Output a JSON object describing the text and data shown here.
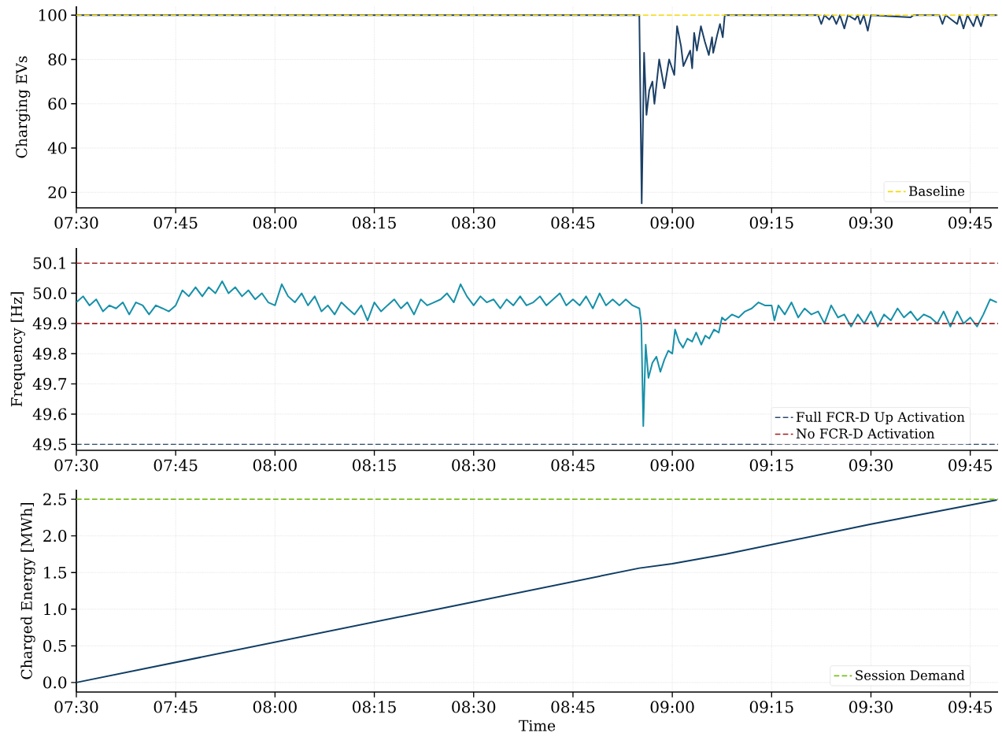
{
  "chart_data": [
    {
      "type": "line",
      "ylabel": "Charging EVs",
      "xlim": [
        7.5,
        9.82
      ],
      "ylim": [
        13,
        104
      ],
      "grid": true,
      "legend": "bottom right",
      "xticks": [
        {
          "value": 7.5,
          "label": "07:30"
        },
        {
          "value": 7.75,
          "label": "07:45"
        },
        {
          "value": 8.0,
          "label": "08:00"
        },
        {
          "value": 8.25,
          "label": "08:15"
        },
        {
          "value": 8.5,
          "label": "08:30"
        },
        {
          "value": 8.75,
          "label": "08:45"
        },
        {
          "value": 9.0,
          "label": "09:00"
        },
        {
          "value": 9.25,
          "label": "09:15"
        },
        {
          "value": 9.5,
          "label": "09:30"
        },
        {
          "value": 9.75,
          "label": "09:45"
        }
      ],
      "yticks": [
        20,
        40,
        60,
        80,
        100
      ],
      "series": [
        {
          "color": "#1b3f66",
          "x": [
            7.5,
            8.917,
            8.923,
            8.929,
            8.935,
            8.942,
            8.95,
            8.955,
            8.967,
            8.98,
            8.992,
            9.005,
            9.012,
            9.022,
            9.028,
            9.045,
            9.05,
            9.055,
            9.062,
            9.072,
            9.082,
            9.092,
            9.1,
            9.103,
            9.113,
            9.12,
            9.127,
            9.132,
            9.367,
            9.375,
            9.383,
            9.395,
            9.403,
            9.413,
            9.422,
            9.433,
            9.442,
            9.46,
            9.467,
            9.473,
            9.482,
            9.492,
            9.5,
            9.6,
            9.607,
            9.672,
            9.68,
            9.688,
            9.717,
            9.723,
            9.733,
            9.743,
            9.758,
            9.767,
            9.777,
            9.785,
            9.817
          ],
          "values": [
            100,
            100,
            15,
            83,
            55,
            66,
            70,
            60,
            80,
            67,
            80,
            73,
            95,
            86,
            77,
            84,
            76,
            92,
            84,
            95,
            88,
            82,
            90,
            83,
            91,
            96,
            90,
            100,
            100,
            96,
            100,
            98,
            100,
            96,
            100,
            94,
            100,
            98,
            100,
            96,
            100,
            93,
            100,
            99,
            100,
            100,
            96,
            100,
            96,
            100,
            94,
            100,
            95,
            100,
            95,
            100,
            100
          ]
        }
      ],
      "ref_lines": [
        {
          "axis": "y",
          "value": 100,
          "label": "Baseline",
          "color": "#f5d90a",
          "line_style": "dashed"
        }
      ]
    },
    {
      "type": "line",
      "ylabel": "Frequency [Hz]",
      "xlim": [
        7.5,
        9.82
      ],
      "ylim": [
        49.48,
        50.15
      ],
      "grid": true,
      "legend": "bottom right",
      "xticks": [
        {
          "value": 7.5,
          "label": "07:30"
        },
        {
          "value": 7.75,
          "label": "07:45"
        },
        {
          "value": 8.0,
          "label": "08:00"
        },
        {
          "value": 8.25,
          "label": "08:15"
        },
        {
          "value": 8.5,
          "label": "08:30"
        },
        {
          "value": 8.75,
          "label": "08:45"
        },
        {
          "value": 9.0,
          "label": "09:00"
        },
        {
          "value": 9.25,
          "label": "09:15"
        },
        {
          "value": 9.5,
          "label": "09:30"
        },
        {
          "value": 9.75,
          "label": "09:45"
        }
      ],
      "yticks": [
        49.5,
        49.6,
        49.7,
        49.8,
        49.9,
        {
          "value": 50.0,
          "label": "50.0"
        },
        50.1
      ],
      "series": [
        {
          "color": "#1690a8",
          "x": [
            7.5,
            7.517,
            7.533,
            7.55,
            7.567,
            7.583,
            7.6,
            7.617,
            7.633,
            7.65,
            7.667,
            7.683,
            7.7,
            7.717,
            7.733,
            7.75,
            7.767,
            7.783,
            7.8,
            7.817,
            7.833,
            7.85,
            7.867,
            7.883,
            7.9,
            7.917,
            7.933,
            7.95,
            7.967,
            7.983,
            8.0,
            8.017,
            8.033,
            8.05,
            8.067,
            8.083,
            8.1,
            8.117,
            8.133,
            8.15,
            8.167,
            8.183,
            8.2,
            8.217,
            8.233,
            8.25,
            8.267,
            8.283,
            8.3,
            8.317,
            8.333,
            8.35,
            8.367,
            8.383,
            8.4,
            8.417,
            8.433,
            8.45,
            8.467,
            8.483,
            8.5,
            8.517,
            8.533,
            8.55,
            8.567,
            8.583,
            8.6,
            8.617,
            8.633,
            8.65,
            8.667,
            8.683,
            8.7,
            8.717,
            8.733,
            8.75,
            8.767,
            8.783,
            8.8,
            8.817,
            8.833,
            8.85,
            8.867,
            8.883,
            8.9,
            8.917,
            8.922,
            8.927,
            8.933,
            8.94,
            8.95,
            8.96,
            8.97,
            8.98,
            8.99,
            9.0,
            9.007,
            9.017,
            9.027,
            9.038,
            9.05,
            9.06,
            9.073,
            9.083,
            9.093,
            9.105,
            9.117,
            9.125,
            9.133,
            9.15,
            9.167,
            9.183,
            9.2,
            9.217,
            9.233,
            9.25,
            9.257,
            9.267,
            9.283,
            9.3,
            9.317,
            9.333,
            9.35,
            9.367,
            9.383,
            9.4,
            9.417,
            9.433,
            9.45,
            9.467,
            9.483,
            9.5,
            9.517,
            9.533,
            9.55,
            9.567,
            9.583,
            9.6,
            9.617,
            9.633,
            9.65,
            9.667,
            9.683,
            9.7,
            9.717,
            9.733,
            9.75,
            9.767,
            9.783,
            9.8,
            9.817
          ],
          "values": [
            49.97,
            49.99,
            49.96,
            49.98,
            49.94,
            49.96,
            49.95,
            49.97,
            49.93,
            49.97,
            49.96,
            49.93,
            49.96,
            49.95,
            49.94,
            49.96,
            50.01,
            49.99,
            50.02,
            49.99,
            50.02,
            50.0,
            50.04,
            50.0,
            50.02,
            49.99,
            50.01,
            49.98,
            50.0,
            49.97,
            49.96,
            50.03,
            49.99,
            49.97,
            50.0,
            49.96,
            49.99,
            49.94,
            49.96,
            49.93,
            49.97,
            49.95,
            49.93,
            49.96,
            49.91,
            49.97,
            49.94,
            49.96,
            49.98,
            49.95,
            49.97,
            49.93,
            49.98,
            49.96,
            49.97,
            49.98,
            50.0,
            49.97,
            50.03,
            49.99,
            49.96,
            49.99,
            49.97,
            49.98,
            49.95,
            49.98,
            49.96,
            49.99,
            49.96,
            49.97,
            49.99,
            49.96,
            49.98,
            50.0,
            49.96,
            49.98,
            49.96,
            49.99,
            49.95,
            50.0,
            49.96,
            49.98,
            49.96,
            49.98,
            49.96,
            49.95,
            49.9,
            49.56,
            49.83,
            49.72,
            49.77,
            49.79,
            49.74,
            49.78,
            49.81,
            49.8,
            49.88,
            49.84,
            49.82,
            49.85,
            49.84,
            49.87,
            49.83,
            49.86,
            49.85,
            49.88,
            49.87,
            49.92,
            49.91,
            49.93,
            49.92,
            49.94,
            49.95,
            49.97,
            49.96,
            49.96,
            49.91,
            49.96,
            49.93,
            49.97,
            49.92,
            49.95,
            49.93,
            49.94,
            49.9,
            49.96,
            49.92,
            49.93,
            49.89,
            49.93,
            49.9,
            49.94,
            49.89,
            49.93,
            49.91,
            49.95,
            49.92,
            49.94,
            49.91,
            49.93,
            49.92,
            49.9,
            49.94,
            49.89,
            49.94,
            49.9,
            49.92,
            49.89,
            49.93,
            49.98,
            49.97
          ]
        }
      ],
      "ref_lines": [
        {
          "axis": "y",
          "value": 49.5,
          "label": "Full FCR-D Up Activation",
          "color": "#2e4a6e",
          "line_style": "dashed"
        },
        {
          "axis": "y",
          "value": 50.1,
          "label": "No FCR-D Activation",
          "color": "#a01c1c",
          "line_style": "dashed"
        },
        {
          "axis": "y",
          "value": 49.9,
          "color": "#a21e1e",
          "line_style": "dashed"
        }
      ]
    },
    {
      "type": "line",
      "xlabel": "Time",
      "ylabel": "Charged Energy [MWh]",
      "xlim": [
        7.5,
        9.82
      ],
      "ylim": [
        -0.13,
        2.63
      ],
      "grid": true,
      "legend": "bottom right",
      "xticks": [
        {
          "value": 7.5,
          "label": "07:30"
        },
        {
          "value": 7.75,
          "label": "07:45"
        },
        {
          "value": 8.0,
          "label": "08:00"
        },
        {
          "value": 8.25,
          "label": "08:15"
        },
        {
          "value": 8.5,
          "label": "08:30"
        },
        {
          "value": 8.75,
          "label": "08:45"
        },
        {
          "value": 9.0,
          "label": "09:00"
        },
        {
          "value": 9.25,
          "label": "09:15"
        },
        {
          "value": 9.5,
          "label": "09:30"
        },
        {
          "value": 9.75,
          "label": "09:45"
        }
      ],
      "yticks": [
        {
          "value": 0,
          "label": "0.0"
        },
        0.5,
        {
          "value": 1,
          "label": "1.0"
        },
        1.5,
        {
          "value": 2,
          "label": "2.0"
        },
        2.5
      ],
      "series": [
        {
          "color": "#0f3d64",
          "x": [
            7.5,
            8.0,
            8.5,
            8.917,
            9.0,
            9.133,
            9.5,
            9.817
          ],
          "values": [
            0,
            0.55,
            1.1,
            1.56,
            1.62,
            1.75,
            2.16,
            2.49
          ]
        }
      ],
      "ref_lines": [
        {
          "axis": "y",
          "value": 2.5,
          "label": "Session Demand",
          "color": "#7cc01e",
          "line_style": "dashed"
        }
      ]
    }
  ]
}
